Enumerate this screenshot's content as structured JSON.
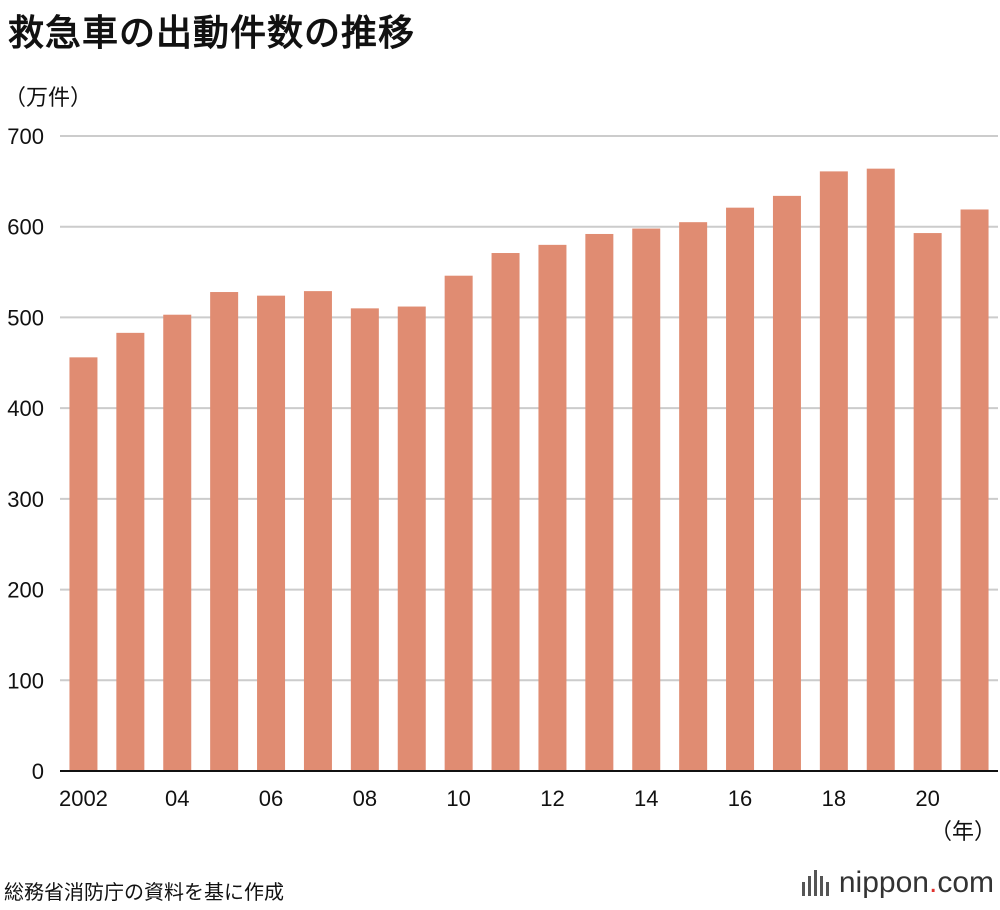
{
  "title": "救急車の出動件数の推移",
  "unit_label": "（万件）",
  "x_unit_label": "（年）",
  "source": "総務省消防庁の資料を基に作成",
  "logo": {
    "name": "nippon",
    "dot": ".",
    "suffix": "com"
  },
  "colors": {
    "bar": "#e08c72",
    "grid": "#cccccc",
    "axis": "#111111",
    "logo_dot": "#e0322e"
  },
  "chart_data": {
    "type": "bar",
    "title": "救急車の出動件数の推移",
    "ylabel": "（万件）",
    "xlabel": "（年）",
    "ylim": [
      0,
      700
    ],
    "yticks": [
      0,
      100,
      200,
      300,
      400,
      500,
      600,
      700
    ],
    "grid": true,
    "categories": [
      "2002",
      "2003",
      "2004",
      "2005",
      "2006",
      "2007",
      "2008",
      "2009",
      "2010",
      "2011",
      "2012",
      "2013",
      "2014",
      "2015",
      "2016",
      "2017",
      "2018",
      "2019",
      "2020",
      "2021"
    ],
    "tick_labels": [
      "2002",
      "",
      "04",
      "",
      "06",
      "",
      "08",
      "",
      "10",
      "",
      "12",
      "",
      "14",
      "",
      "16",
      "",
      "18",
      "",
      "20",
      ""
    ],
    "values": [
      456,
      483,
      503,
      528,
      524,
      529,
      510,
      512,
      546,
      571,
      580,
      592,
      598,
      605,
      621,
      634,
      661,
      664,
      593,
      619
    ]
  }
}
